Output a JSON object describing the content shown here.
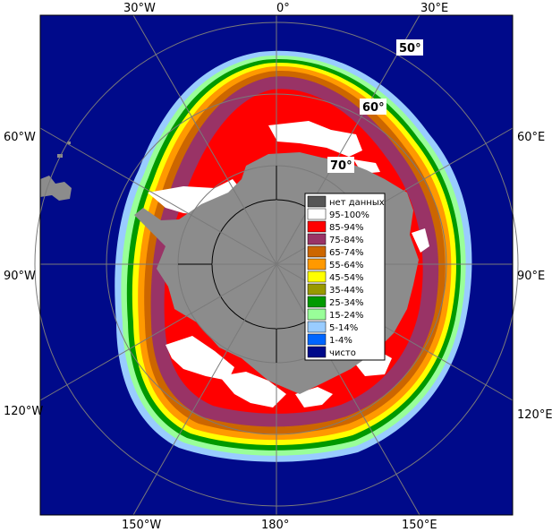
{
  "map": {
    "longitude_labels": {
      "top": [
        "30°W",
        "0°",
        "30°E"
      ],
      "left": [
        "60°W",
        "90°W",
        "120°W"
      ],
      "right": [
        "60°E",
        "90°E",
        "120°E"
      ],
      "bottom": [
        "150°W",
        "180°",
        "150°E"
      ]
    },
    "latitude_labels": [
      "50°",
      "60°",
      "70°"
    ],
    "colors": {
      "ocean": "#000a8a",
      "land": "#8c8c8c",
      "grid": "#7a7a7a",
      "ice_95_100": "#ffffff",
      "ice_85_94": "#ff0000",
      "ice_75_84": "#993366",
      "ice_65_74": "#cc6600",
      "ice_55_64": "#ff9900",
      "ice_45_54": "#ffff00",
      "ice_35_44": "#999900",
      "ice_25_34": "#009900",
      "ice_15_24": "#99ff99",
      "ice_5_14": "#99ccff",
      "ice_1_4": "#0066ff",
      "no_data": "#555555"
    }
  },
  "legend": {
    "items": [
      {
        "label": "нет данных",
        "color": "#555555"
      },
      {
        "label": "95-100%",
        "color": "#ffffff"
      },
      {
        "label": "85-94%",
        "color": "#ff0000"
      },
      {
        "label": "75-84%",
        "color": "#993366"
      },
      {
        "label": "65-74%",
        "color": "#cc6600"
      },
      {
        "label": "55-64%",
        "color": "#ff9900"
      },
      {
        "label": "45-54%",
        "color": "#ffff00"
      },
      {
        "label": "35-44%",
        "color": "#999900"
      },
      {
        "label": "25-34%",
        "color": "#009900"
      },
      {
        "label": "15-24%",
        "color": "#99ff99"
      },
      {
        "label": "5-14%",
        "color": "#99ccff"
      },
      {
        "label": "1-4%",
        "color": "#0066ff"
      },
      {
        "label": "чисто",
        "color": "#000a8a"
      }
    ]
  }
}
